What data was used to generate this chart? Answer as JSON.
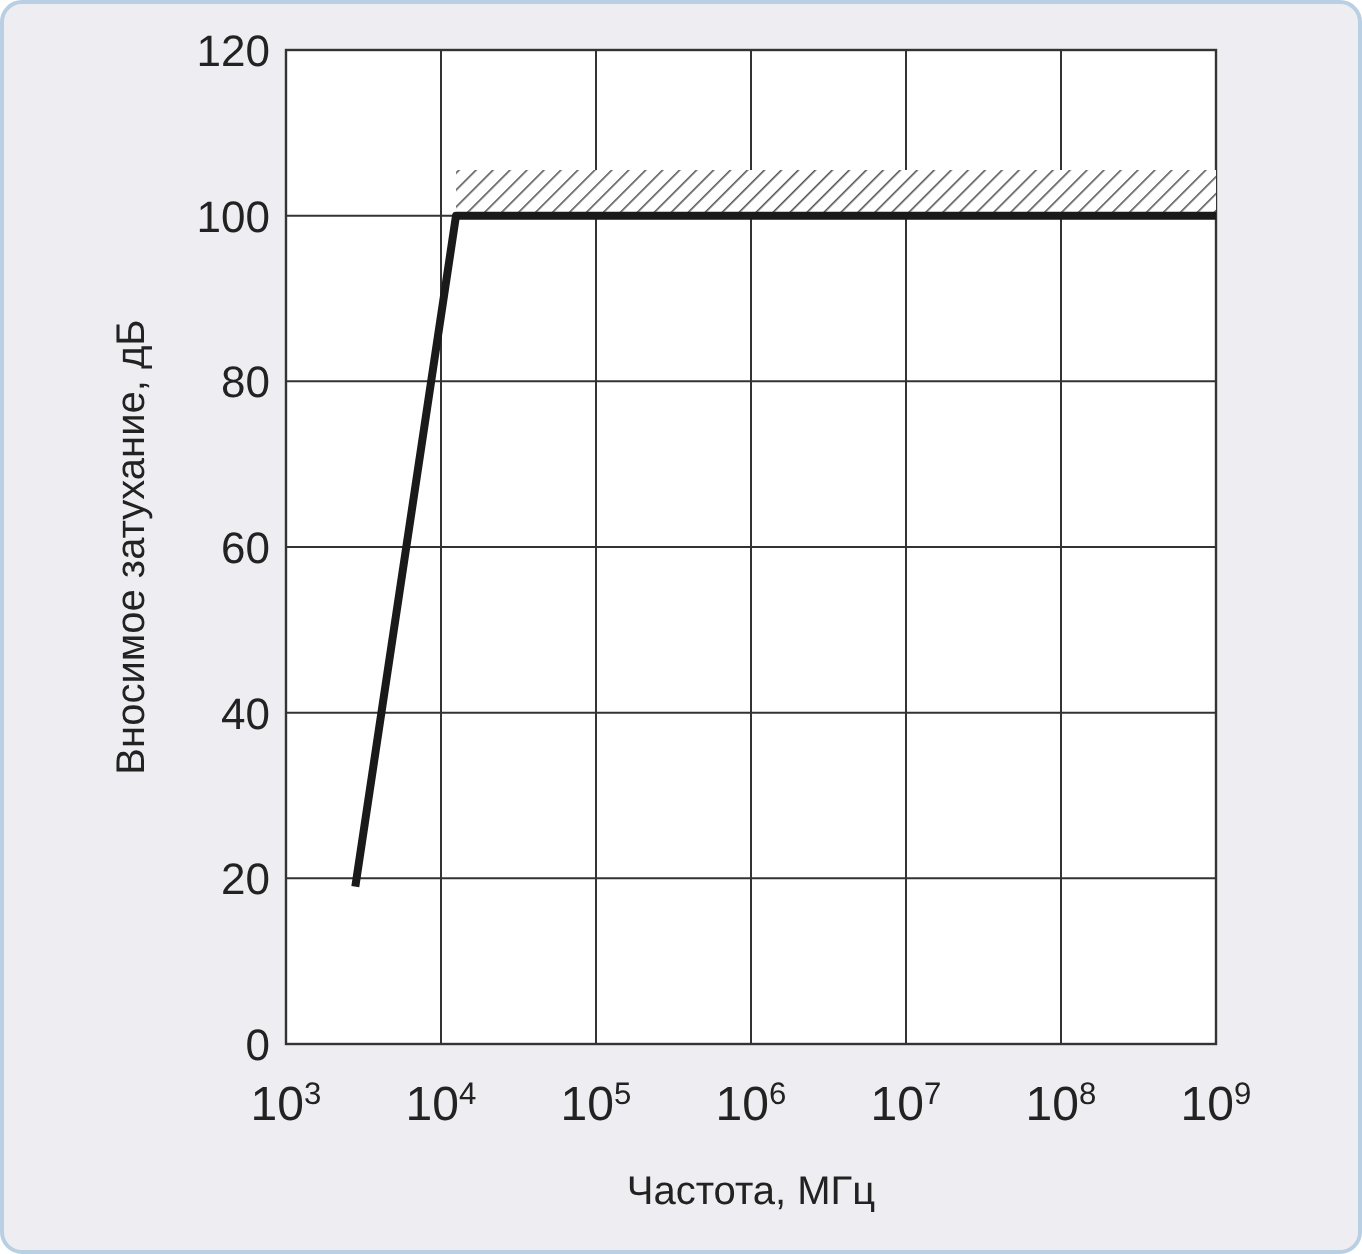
{
  "chart_data": {
    "type": "line",
    "xlabel": "Частота, МГц",
    "ylabel": "Вносимое затухание, дБ",
    "log": "x",
    "xlim": [
      1000,
      1000000000
    ],
    "xticks": [
      {
        "value": 1000,
        "label": "10$^{3}$"
      },
      {
        "value": 10000,
        "label": "10$^{4}$"
      },
      {
        "value": 100000,
        "label": "10$^{5}$"
      },
      {
        "value": 1000000,
        "label": "10$^{6}$"
      },
      {
        "value": 10000000,
        "label": "10$^{7}$"
      },
      {
        "value": 100000000,
        "label": "10$^{8}$"
      },
      {
        "value": 1000000000,
        "label": "10$^{9}$"
      }
    ],
    "ylim": [
      0,
      120
    ],
    "yticks": [
      0,
      20,
      40,
      60,
      80,
      100,
      120
    ],
    "grid": true,
    "marker": "none",
    "line_style": "solid",
    "series": [
      {
        "color": "#1a1a1a",
        "x": [
          2800,
          12500,
          1000000000
        ],
        "values": [
          19,
          100,
          100
        ],
        "lower": [
          null,
          100,
          100
        ],
        "upper": [
          null,
          105.5,
          105.5
        ]
      }
    ]
  }
}
